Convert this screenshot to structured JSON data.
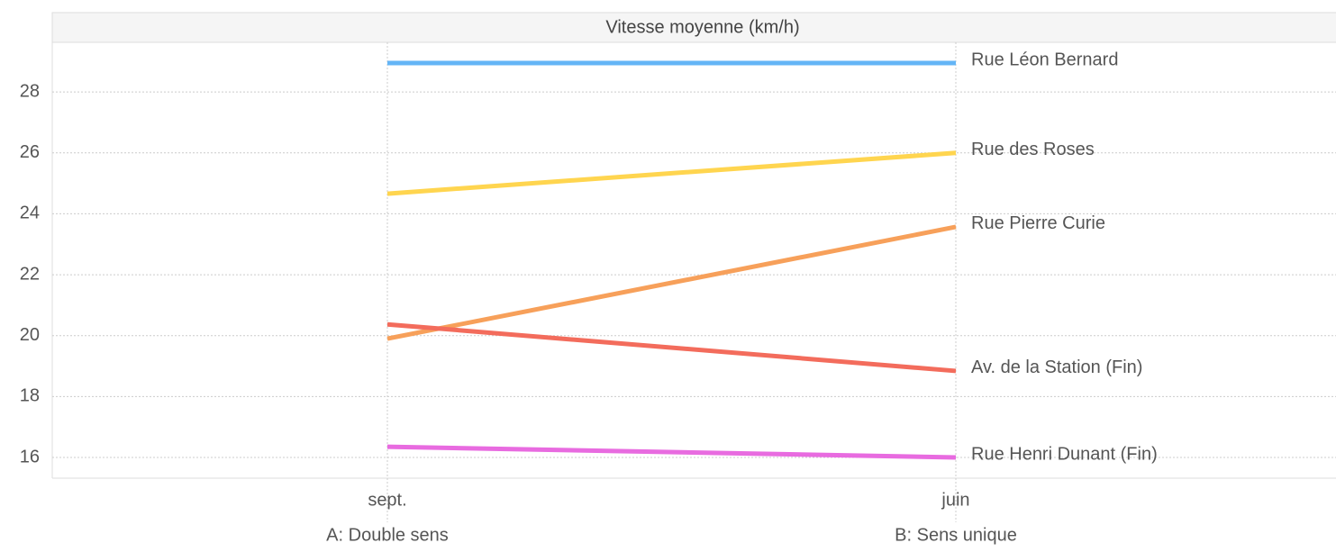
{
  "chart_data": {
    "type": "line",
    "title": "Vitesse moyenne (km/h)",
    "categories": [
      "sept.",
      "juin"
    ],
    "category_sublabels": [
      "A: Double sens",
      "B: Sens unique"
    ],
    "series": [
      {
        "name": "Rue Léon Bernard",
        "color": "#64b5f6",
        "values": [
          28.95,
          28.95
        ]
      },
      {
        "name": "Rue des Roses",
        "color": "#ffd54f",
        "values": [
          24.66,
          26.0
        ]
      },
      {
        "name": "Rue Pierre Curie",
        "color": "#f7a05a",
        "values": [
          19.9,
          23.57
        ]
      },
      {
        "name": "Av. de la Station (Fin)",
        "color": "#f36c5c",
        "values": [
          20.37,
          18.84
        ]
      },
      {
        "name": "Rue Henri Dunant (Fin)",
        "color": "#e86be0",
        "values": [
          16.35,
          16.0
        ]
      }
    ],
    "ylim": [
      15.32,
      29.63
    ],
    "yticks": [
      16,
      18,
      20,
      22,
      24,
      26,
      28
    ],
    "grid": true
  }
}
